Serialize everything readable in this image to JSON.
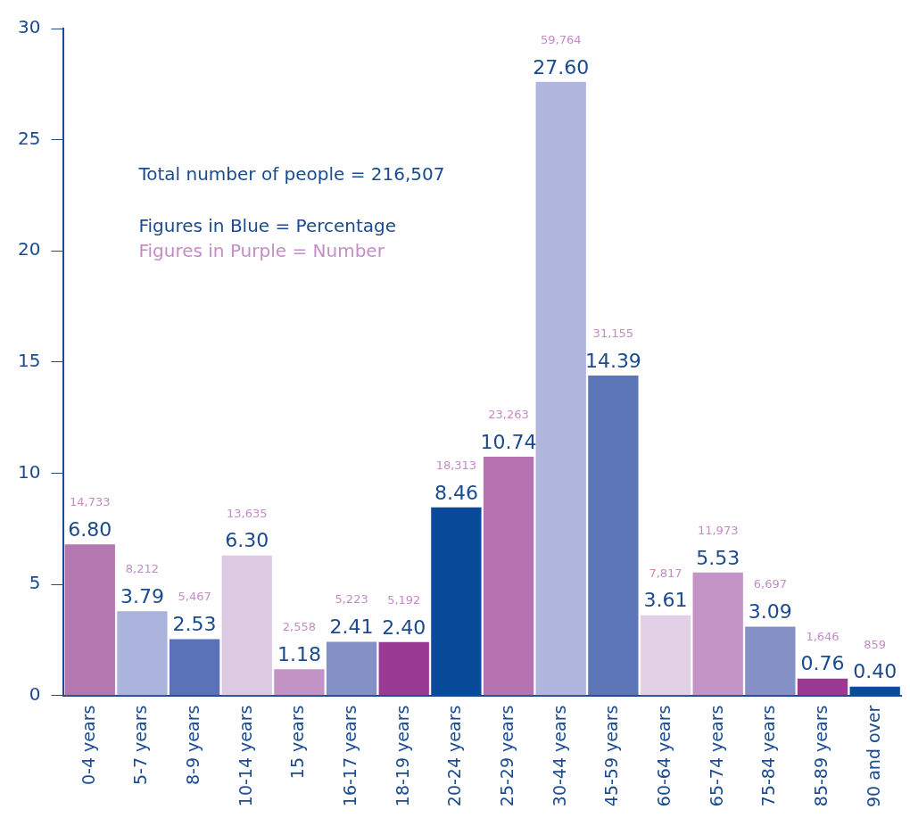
{
  "chart_data": {
    "type": "bar",
    "categories": [
      "0-4 years",
      "5-7 years",
      "8-9 years",
      "10-14 years",
      "15 years",
      "16-17 years",
      "18-19 years",
      "20-24 years",
      "25-29 years",
      "30-44 years",
      "45-59 years",
      "60-64 years",
      "65-74 years",
      "75-84 years",
      "85-89 years",
      "90 and over"
    ],
    "values": [
      6.8,
      3.79,
      2.53,
      6.3,
      1.18,
      2.41,
      2.4,
      8.46,
      10.74,
      27.6,
      14.39,
      3.61,
      5.53,
      3.09,
      0.76,
      0.4
    ],
    "value_labels": [
      "6.80",
      "3.79",
      "2.53",
      "6.30",
      "1.18",
      "2.41",
      "2.40",
      "8.46",
      "10.74",
      "27.60",
      "14.39",
      "3.61",
      "5.53",
      "3.09",
      "0.76",
      "0.40"
    ],
    "colors": [
      "#b577b0",
      "#aab3dc",
      "#5a72b8",
      "#dccbe3",
      "#c393c6",
      "#8491c6",
      "#9a3b93",
      "#0a4a9a",
      "#b574b0",
      "#b0b6de",
      "#5c76b8",
      "#e2d0e6",
      "#c594c6",
      "#8590c6",
      "#9a3a92",
      "#0b4b9b"
    ],
    "ylim": [
      0,
      30
    ],
    "yticks": [
      0,
      5,
      10,
      15,
      20,
      25,
      30
    ],
    "grid": false,
    "legend": false,
    "annotations": [
      "Total number of people = 216,507",
      "Figures in Blue = Percentage",
      "Figures in Purple = Number",
      "14,733",
      "8,212",
      "5,467",
      "13,635",
      "2,558",
      "5,223",
      "5,192",
      "18,313",
      "23,263",
      "59,764",
      "31,155",
      "7,817",
      "11,973",
      "6,697",
      "1,646",
      "859"
    ]
  }
}
